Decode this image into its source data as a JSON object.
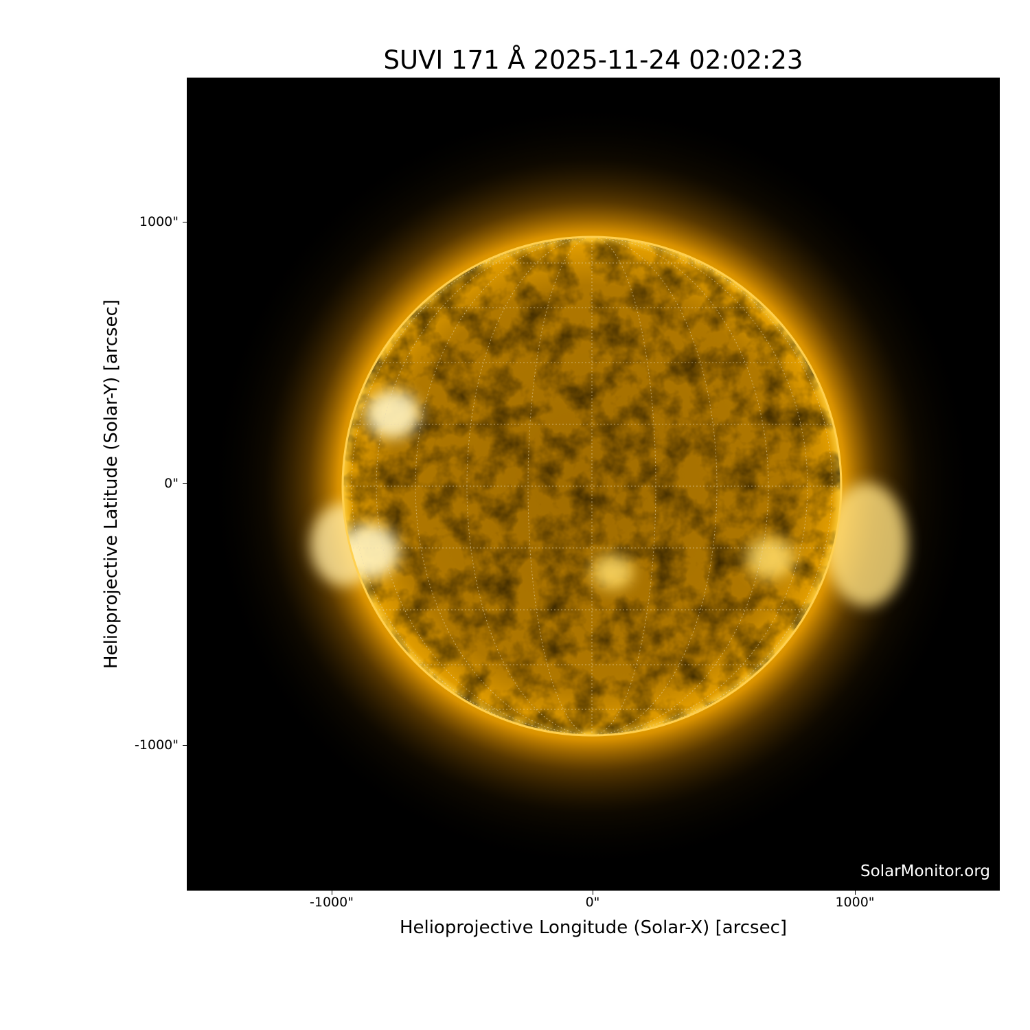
{
  "chart_data": {
    "type": "heatmap",
    "title": "SUVI 171 Å 2025-11-24 02:02:23",
    "xlabel": "Helioprojective Longitude (Solar-X) [arcsec]",
    "ylabel": "Helioprojective Latitude (Solar-Y) [arcsec]",
    "xticks": [
      "-1000\"",
      "0\"",
      "1000\""
    ],
    "yticks": [
      "1000\"",
      "0\"",
      "-1000\""
    ],
    "xtick_values": [
      -1000,
      0,
      1000
    ],
    "ytick_values": [
      1000,
      0,
      -1000
    ],
    "xlim": [
      -1550,
      1555
    ],
    "ylim": [
      -1555,
      1550
    ],
    "colormap": "SUVI 171 (black-orange-white)",
    "grid": "heliographic lat/lon dotted overlay",
    "colors": {
      "disk": "#c98a00",
      "corona": "#ffb300",
      "background": "#000000"
    }
  },
  "watermark": "SolarMonitor.org"
}
